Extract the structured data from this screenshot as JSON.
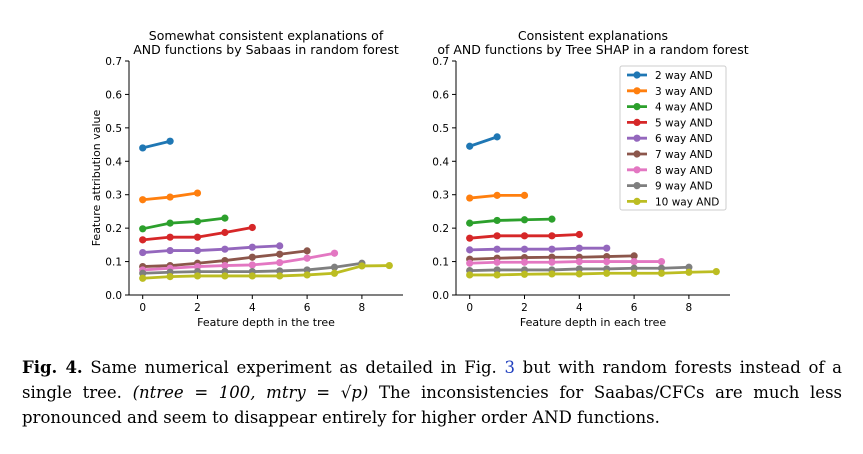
{
  "chart_data": [
    {
      "type": "line",
      "title": [
        "Somewhat consistent explanations of",
        "AND functions by Sabaas in random forest"
      ],
      "xlabel": "Feature depth in the tree",
      "ylabel": "Feature attribution value",
      "xlim": [
        -0.5,
        9.5
      ],
      "ylim": [
        0.0,
        0.7
      ],
      "xticks": [
        0,
        2,
        4,
        6,
        8
      ],
      "yticks": [
        0.0,
        0.1,
        0.2,
        0.3,
        0.4,
        0.5,
        0.6,
        0.7
      ],
      "ytick_labels": [
        "0.0",
        "0.1",
        "0.2",
        "0.3",
        "0.4",
        "0.5",
        "0.6",
        "0.7"
      ],
      "legend": false,
      "series": [
        {
          "name": "2 way AND",
          "color": "#1f77b4",
          "values": [
            0.44,
            0.46
          ]
        },
        {
          "name": "3 way AND",
          "color": "#ff7f0e",
          "values": [
            0.285,
            0.293,
            0.305
          ]
        },
        {
          "name": "4 way AND",
          "color": "#2ca02c",
          "values": [
            0.198,
            0.215,
            0.22,
            0.23
          ]
        },
        {
          "name": "5 way AND",
          "color": "#d62728",
          "values": [
            0.165,
            0.173,
            0.173,
            0.187,
            0.202
          ]
        },
        {
          "name": "6 way AND",
          "color": "#9467bd",
          "values": [
            0.127,
            0.133,
            0.133,
            0.137,
            0.143,
            0.147
          ]
        },
        {
          "name": "7 way AND",
          "color": "#8c564b",
          "values": [
            0.085,
            0.088,
            0.095,
            0.103,
            0.113,
            0.122,
            0.132
          ]
        },
        {
          "name": "8 way AND",
          "color": "#e377c2",
          "values": [
            0.075,
            0.08,
            0.085,
            0.088,
            0.09,
            0.097,
            0.11,
            0.125
          ]
        },
        {
          "name": "9 way AND",
          "color": "#7f7f7f",
          "values": [
            0.065,
            0.068,
            0.07,
            0.07,
            0.07,
            0.072,
            0.075,
            0.083,
            0.095
          ]
        },
        {
          "name": "10 way AND",
          "color": "#bcbd22",
          "values": [
            0.05,
            0.055,
            0.057,
            0.057,
            0.057,
            0.057,
            0.06,
            0.065,
            0.087,
            0.088
          ]
        }
      ]
    },
    {
      "type": "line",
      "title": [
        "Consistent explanations",
        "of AND functions by Tree SHAP in a random forest"
      ],
      "xlabel": "Feature depth in each tree",
      "ylabel": "",
      "xlim": [
        -0.5,
        9.5
      ],
      "ylim": [
        0.0,
        0.7
      ],
      "xticks": [
        0,
        2,
        4,
        6,
        8
      ],
      "yticks": [
        0.0,
        0.1,
        0.2,
        0.3,
        0.4,
        0.5,
        0.6,
        0.7
      ],
      "ytick_labels": [
        "0.0",
        "0.1",
        "0.2",
        "0.3",
        "0.4",
        "0.5",
        "0.6",
        "0.7"
      ],
      "legend": "top-right",
      "series": [
        {
          "name": "2 way AND",
          "color": "#1f77b4",
          "values": [
            0.445,
            0.473
          ]
        },
        {
          "name": "3 way AND",
          "color": "#ff7f0e",
          "values": [
            0.29,
            0.298,
            0.298
          ]
        },
        {
          "name": "4 way AND",
          "color": "#2ca02c",
          "values": [
            0.215,
            0.223,
            0.225,
            0.227
          ]
        },
        {
          "name": "5 way AND",
          "color": "#d62728",
          "values": [
            0.17,
            0.177,
            0.177,
            0.177,
            0.181
          ]
        },
        {
          "name": "6 way AND",
          "color": "#9467bd",
          "values": [
            0.135,
            0.137,
            0.137,
            0.137,
            0.14,
            0.14
          ]
        },
        {
          "name": "7 way AND",
          "color": "#8c564b",
          "values": [
            0.107,
            0.11,
            0.112,
            0.113,
            0.113,
            0.115,
            0.117
          ]
        },
        {
          "name": "8 way AND",
          "color": "#e377c2",
          "values": [
            0.095,
            0.098,
            0.098,
            0.098,
            0.1,
            0.1,
            0.1,
            0.1
          ]
        },
        {
          "name": "9 way AND",
          "color": "#7f7f7f",
          "values": [
            0.073,
            0.075,
            0.075,
            0.075,
            0.078,
            0.078,
            0.08,
            0.08,
            0.083
          ]
        },
        {
          "name": "10 way AND",
          "color": "#bcbd22",
          "values": [
            0.06,
            0.06,
            0.062,
            0.063,
            0.063,
            0.065,
            0.065,
            0.065,
            0.068,
            0.07
          ]
        }
      ]
    }
  ],
  "caption": {
    "fig_label": "Fig. 4.",
    "text_1": " Same numerical experiment as detailed in Fig. ",
    "fig_ref": "3",
    "text_2": " but with random forests instead of a single tree. ",
    "math": "(ntree = 100, mtry = √p)",
    "text_3": " The inconsistencies for Saabas/CFCs are much less pronounced and seem to disappear entirely for higher order AND functions."
  }
}
